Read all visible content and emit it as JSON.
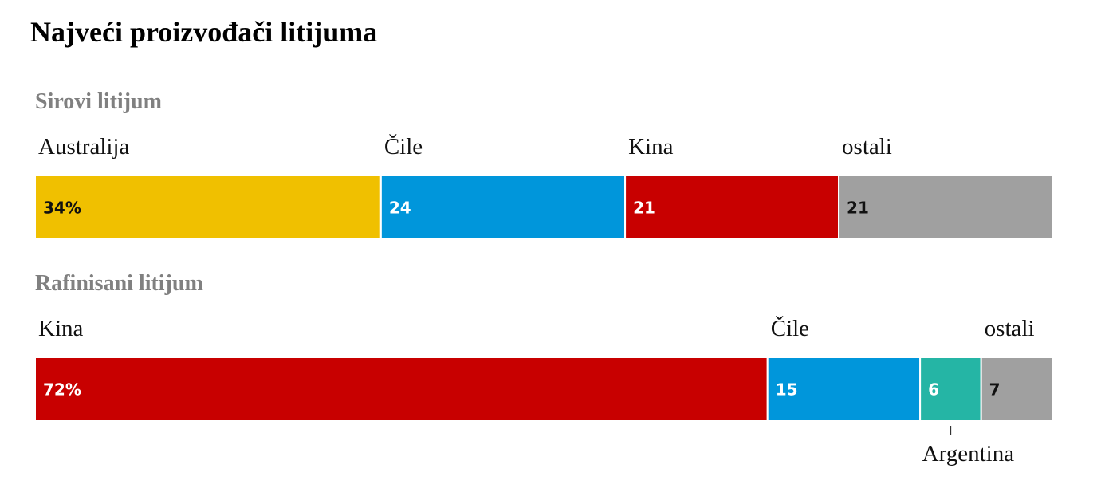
{
  "title": "Najveći proizvođači litijuma",
  "chart_data": [
    {
      "type": "stacked-bar",
      "subtitle": "Sirovi litijum",
      "xlim": [
        0,
        100
      ],
      "series": [
        {
          "name": "Australija",
          "color": "#f0c000",
          "values": [
            34
          ],
          "value_labels": [
            "34%"
          ]
        },
        {
          "name": "Čile",
          "color": "#0096db",
          "values": [
            24
          ]
        },
        {
          "name": "Kina",
          "color": "#c80000",
          "values": [
            21
          ]
        },
        {
          "name": "ostali",
          "color": "#a0a0a0",
          "values": [
            21
          ]
        }
      ]
    },
    {
      "type": "stacked-bar",
      "subtitle": "Rafinisani litijum",
      "xlim": [
        0,
        100
      ],
      "series": [
        {
          "name": "Kina",
          "color": "#c80000",
          "values": [
            72
          ],
          "value_labels": [
            "72%"
          ]
        },
        {
          "name": "Čile",
          "color": "#0096db",
          "values": [
            15
          ]
        },
        {
          "name": "Argentina",
          "color": "#25b5a5",
          "values": [
            6
          ]
        },
        {
          "name": "ostali",
          "color": "#a0a0a0",
          "values": [
            7
          ]
        }
      ]
    }
  ]
}
